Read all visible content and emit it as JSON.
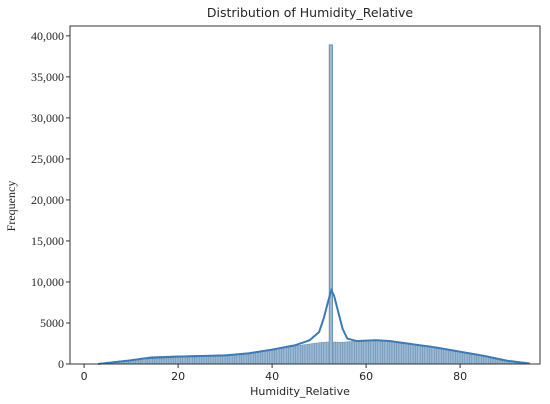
{
  "chart_data": {
    "type": "bar",
    "title": "Distribution of Humidity_Relative",
    "xlabel": "Humidity_Relative",
    "ylabel": "Frequency",
    "xlim": [
      -3,
      97
    ],
    "ylim": [
      0,
      41200
    ],
    "x_ticks": [
      0,
      20,
      40,
      60,
      80
    ],
    "x_tick_labels": [
      "0",
      "20",
      "40",
      "60",
      "80"
    ],
    "y_ticks": [
      0,
      5000,
      10000,
      15000,
      20000,
      25000,
      30000,
      35000,
      40000
    ],
    "y_tick_labels": [
      "0",
      "5000",
      "10,000",
      "15,000",
      "20,000",
      "25,000",
      "30,000",
      "35,000",
      "40,000"
    ],
    "grid": false,
    "histogram_profile": {
      "bin_width": 0.5,
      "range": [
        3,
        95
      ],
      "points": [
        [
          3,
          80
        ],
        [
          6,
          250
        ],
        [
          10,
          500
        ],
        [
          13,
          700
        ],
        [
          14,
          900
        ],
        [
          20,
          1000
        ],
        [
          30,
          1100
        ],
        [
          35,
          1300
        ],
        [
          40,
          1700
        ],
        [
          45,
          2200
        ],
        [
          50,
          2600
        ],
        [
          52,
          2700
        ],
        [
          55,
          2650
        ],
        [
          60,
          2900
        ],
        [
          65,
          2800
        ],
        [
          70,
          2400
        ],
        [
          75,
          2000
        ],
        [
          80,
          1500
        ],
        [
          85,
          1000
        ],
        [
          88,
          500
        ],
        [
          92,
          150
        ],
        [
          95,
          50
        ]
      ]
    },
    "spike": {
      "x": 52.5,
      "value": 38900
    },
    "kde": {
      "points": [
        [
          3,
          0
        ],
        [
          6,
          200
        ],
        [
          10,
          450
        ],
        [
          13,
          700
        ],
        [
          20,
          900
        ],
        [
          30,
          1050
        ],
        [
          35,
          1300
        ],
        [
          40,
          1750
        ],
        [
          45,
          2300
        ],
        [
          48,
          2900
        ],
        [
          50,
          3900
        ],
        [
          51,
          5600
        ],
        [
          52,
          7800
        ],
        [
          52.6,
          9000
        ],
        [
          53.2,
          8300
        ],
        [
          54,
          6500
        ],
        [
          55,
          4300
        ],
        [
          56,
          3100
        ],
        [
          58,
          2800
        ],
        [
          62,
          2900
        ],
        [
          65,
          2800
        ],
        [
          70,
          2400
        ],
        [
          75,
          2000
        ],
        [
          80,
          1500
        ],
        [
          85,
          1000
        ],
        [
          90,
          400
        ],
        [
          95,
          50
        ]
      ]
    },
    "colors": {
      "bar_fill": "#9bb8d3",
      "bar_edge": "#5a87ad",
      "kde_line": "#3b7bb5",
      "axis": "#333333"
    }
  }
}
